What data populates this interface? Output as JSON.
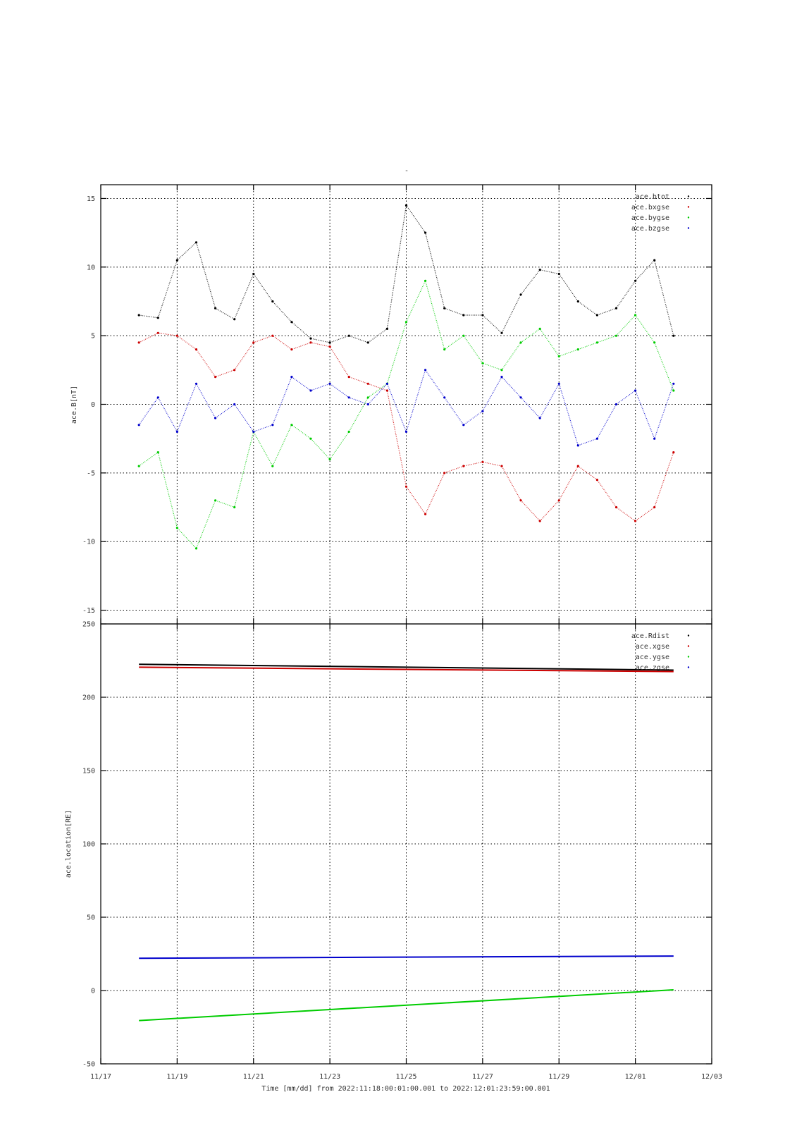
{
  "chart_data": [
    {
      "type": "scatter",
      "title": "-",
      "ylabel": "ace.B[nT]",
      "xlabel": "",
      "ylim": [
        -16,
        16
      ],
      "yticks": [
        -15,
        -10,
        -5,
        0,
        5,
        10,
        15
      ],
      "grid": true,
      "legend_position": "top-right",
      "series": [
        {
          "name": "ace.btot",
          "color": "#000000",
          "x": [
            "11/18 00:00",
            "11/18 12:00",
            "11/19 00:00",
            "11/19 12:00",
            "11/20 00:00",
            "11/20 12:00",
            "11/21 00:00",
            "11/21 12:00",
            "11/22 00:00",
            "11/22 12:00",
            "11/23 00:00",
            "11/23 12:00",
            "11/24 00:00",
            "11/24 12:00",
            "11/25 00:00",
            "11/25 12:00",
            "11/26 00:00",
            "11/26 12:00",
            "11/27 00:00",
            "11/27 12:00",
            "11/28 00:00",
            "11/28 12:00",
            "11/29 00:00",
            "11/29 12:00",
            "11/30 00:00",
            "11/30 12:00",
            "12/01 00:00",
            "12/01 12:00",
            "12/02 00:00"
          ],
          "y": [
            6.5,
            6.3,
            10.5,
            11.8,
            7.0,
            6.2,
            9.5,
            7.5,
            6.0,
            4.8,
            4.5,
            5.0,
            4.5,
            5.5,
            14.5,
            12.5,
            7.0,
            6.5,
            6.5,
            5.2,
            8.0,
            9.8,
            9.5,
            7.5,
            6.5,
            7.0,
            9.0,
            10.5,
            5.0
          ]
        },
        {
          "name": "ace.bxgse",
          "color": "#cc0000",
          "x": [
            "11/18 00:00",
            "11/18 12:00",
            "11/19 00:00",
            "11/19 12:00",
            "11/20 00:00",
            "11/20 12:00",
            "11/21 00:00",
            "11/21 12:00",
            "11/22 00:00",
            "11/22 12:00",
            "11/23 00:00",
            "11/23 12:00",
            "11/24 00:00",
            "11/24 12:00",
            "11/25 00:00",
            "11/25 12:00",
            "11/26 00:00",
            "11/26 12:00",
            "11/27 00:00",
            "11/27 12:00",
            "11/28 00:00",
            "11/28 12:00",
            "11/29 00:00",
            "11/29 12:00",
            "11/30 00:00",
            "11/30 12:00",
            "12/01 00:00",
            "12/01 12:00",
            "12/02 00:00"
          ],
          "y": [
            4.5,
            5.2,
            5.0,
            4.0,
            2.0,
            2.5,
            4.5,
            5.0,
            4.0,
            4.5,
            4.2,
            2.0,
            1.5,
            1.0,
            -6.0,
            -8.0,
            -5.0,
            -4.5,
            -4.2,
            -4.5,
            -7.0,
            -8.5,
            -7.0,
            -4.5,
            -5.5,
            -7.5,
            -8.5,
            -7.5,
            -3.5
          ]
        },
        {
          "name": "ace.bygse",
          "color": "#00cc00",
          "x": [
            "11/18 00:00",
            "11/18 12:00",
            "11/19 00:00",
            "11/19 12:00",
            "11/20 00:00",
            "11/20 12:00",
            "11/21 00:00",
            "11/21 12:00",
            "11/22 00:00",
            "11/22 12:00",
            "11/23 00:00",
            "11/23 12:00",
            "11/24 00:00",
            "11/24 12:00",
            "11/25 00:00",
            "11/25 12:00",
            "11/26 00:00",
            "11/26 12:00",
            "11/27 00:00",
            "11/27 12:00",
            "11/28 00:00",
            "11/28 12:00",
            "11/29 00:00",
            "11/29 12:00",
            "11/30 00:00",
            "11/30 12:00",
            "12/01 00:00",
            "12/01 12:00",
            "12/02 00:00"
          ],
          "y": [
            -4.5,
            -3.5,
            -9.0,
            -10.5,
            -7.0,
            -7.5,
            -2.0,
            -4.5,
            -1.5,
            -2.5,
            -4.0,
            -2.0,
            0.5,
            1.5,
            6.0,
            9.0,
            4.0,
            5.0,
            3.0,
            2.5,
            4.5,
            5.5,
            3.5,
            4.0,
            4.5,
            5.0,
            6.5,
            4.5,
            1.0
          ]
        },
        {
          "name": "ace.bzgse",
          "color": "#0000cc",
          "x": [
            "11/18 00:00",
            "11/18 12:00",
            "11/19 00:00",
            "11/19 12:00",
            "11/20 00:00",
            "11/20 12:00",
            "11/21 00:00",
            "11/21 12:00",
            "11/22 00:00",
            "11/22 12:00",
            "11/23 00:00",
            "11/23 12:00",
            "11/24 00:00",
            "11/24 12:00",
            "11/25 00:00",
            "11/25 12:00",
            "11/26 00:00",
            "11/26 12:00",
            "11/27 00:00",
            "11/27 12:00",
            "11/28 00:00",
            "11/28 12:00",
            "11/29 00:00",
            "11/29 12:00",
            "11/30 00:00",
            "11/30 12:00",
            "12/01 00:00",
            "12/01 12:00",
            "12/02 00:00"
          ],
          "y": [
            -1.5,
            0.5,
            -2.0,
            1.5,
            -1.0,
            0.0,
            -2.0,
            -1.5,
            2.0,
            1.0,
            1.5,
            0.5,
            0.0,
            1.5,
            -2.0,
            2.5,
            0.5,
            -1.5,
            -0.5,
            2.0,
            0.5,
            -1.0,
            1.5,
            -3.0,
            -2.5,
            0.0,
            1.0,
            -2.5,
            1.5
          ]
        }
      ]
    },
    {
      "type": "line",
      "title": "",
      "ylabel": "ace.location[RE]",
      "xlabel": "Time [mm/dd]  from 2022:11:18:00:01:00.001  to  2022:12:01:23:59:00.001",
      "ylim": [
        -50,
        250
      ],
      "yticks": [
        -50,
        0,
        50,
        100,
        150,
        200,
        250
      ],
      "xticks": [
        "11/17",
        "11/19",
        "11/21",
        "11/23",
        "11/25",
        "11/27",
        "11/29",
        "12/01",
        "12/03"
      ],
      "xlim": [
        "11/17",
        "12/03"
      ],
      "grid": true,
      "legend_position": "top-right",
      "series": [
        {
          "name": "ace.Rdist",
          "color": "#000000",
          "x": [
            "11/18 00:01",
            "12/01 23:59"
          ],
          "y": [
            222.5,
            218.5
          ]
        },
        {
          "name": "ace.xgse",
          "color": "#cc0000",
          "x": [
            "11/18 00:01",
            "12/01 23:59"
          ],
          "y": [
            220.5,
            217.5
          ]
        },
        {
          "name": "ace.ygse",
          "color": "#00cc00",
          "x": [
            "11/18 00:01",
            "12/01 23:59"
          ],
          "y": [
            -20.5,
            0.5
          ]
        },
        {
          "name": "ace.zgse",
          "color": "#0000cc",
          "x": [
            "11/18 00:01",
            "12/01 23:59"
          ],
          "y": [
            22.0,
            23.5
          ]
        }
      ]
    }
  ]
}
